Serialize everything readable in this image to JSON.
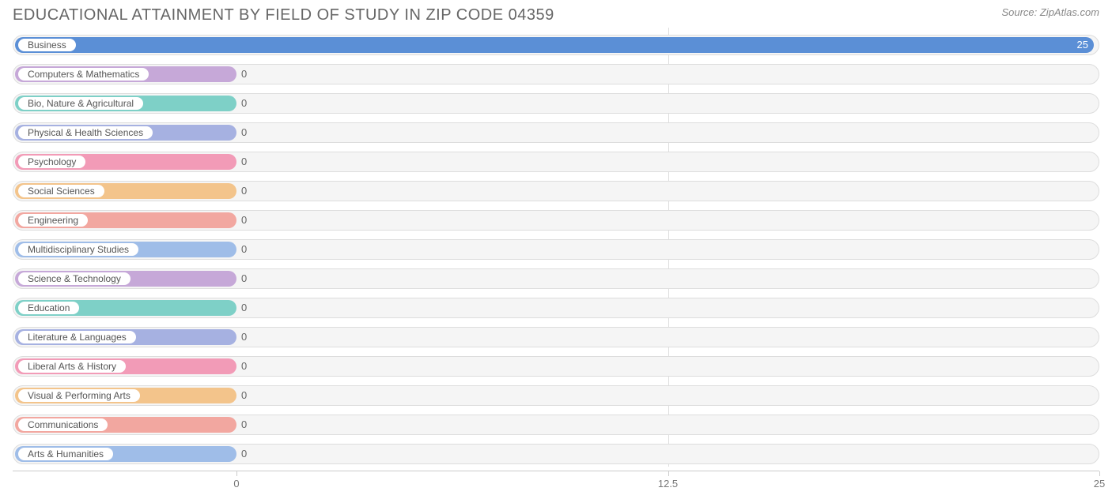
{
  "header": {
    "title": "EDUCATIONAL ATTAINMENT BY FIELD OF STUDY IN ZIP CODE 04359",
    "source": "Source: ZipAtlas.com"
  },
  "chart": {
    "type": "bar",
    "xmin": 0,
    "xmax": 25,
    "axis_origin_pct": 20.6,
    "ticks": [
      {
        "value": 0,
        "label": "0"
      },
      {
        "value": 12.5,
        "label": "12.5"
      },
      {
        "value": 25,
        "label": "25"
      }
    ],
    "track_bg": "#f5f5f5",
    "track_border": "#dddddd",
    "grid_color": "#dddddd",
    "label_fontsize": 12,
    "value_fontsize": 13,
    "title_fontsize": 20,
    "title_color": "#666666",
    "source_fontsize": 13,
    "source_color": "#888888",
    "rows": [
      {
        "label": "Business",
        "value": 25,
        "color": "#5b8fd6",
        "value_color": "#ffffff"
      },
      {
        "label": "Computers & Mathematics",
        "value": 0,
        "color": "#c6a8d8",
        "value_color": "#666666"
      },
      {
        "label": "Bio, Nature & Agricultural",
        "value": 0,
        "color": "#7ed0c7",
        "value_color": "#666666"
      },
      {
        "label": "Physical & Health Sciences",
        "value": 0,
        "color": "#a6b1e1",
        "value_color": "#666666"
      },
      {
        "label": "Psychology",
        "value": 0,
        "color": "#f29bb7",
        "value_color": "#666666"
      },
      {
        "label": "Social Sciences",
        "value": 0,
        "color": "#f3c48b",
        "value_color": "#666666"
      },
      {
        "label": "Engineering",
        "value": 0,
        "color": "#f2a7a0",
        "value_color": "#666666"
      },
      {
        "label": "Multidisciplinary Studies",
        "value": 0,
        "color": "#9fbde8",
        "value_color": "#666666"
      },
      {
        "label": "Science & Technology",
        "value": 0,
        "color": "#c6a8d8",
        "value_color": "#666666"
      },
      {
        "label": "Education",
        "value": 0,
        "color": "#7ed0c7",
        "value_color": "#666666"
      },
      {
        "label": "Literature & Languages",
        "value": 0,
        "color": "#a6b1e1",
        "value_color": "#666666"
      },
      {
        "label": "Liberal Arts & History",
        "value": 0,
        "color": "#f29bb7",
        "value_color": "#666666"
      },
      {
        "label": "Visual & Performing Arts",
        "value": 0,
        "color": "#f3c48b",
        "value_color": "#666666"
      },
      {
        "label": "Communications",
        "value": 0,
        "color": "#f2a7a0",
        "value_color": "#666666"
      },
      {
        "label": "Arts & Humanities",
        "value": 0,
        "color": "#9fbde8",
        "value_color": "#666666"
      }
    ]
  }
}
